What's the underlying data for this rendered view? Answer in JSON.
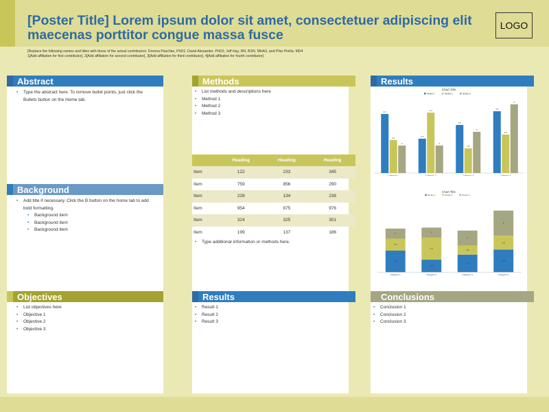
{
  "poster": {
    "title": "[Poster Title] Lorem ipsum dolor sit amet, consectetuer adipiscing elit maecenas porttitor congue massa fusce",
    "logo": "LOGO",
    "authors_line1": "[Replace the following names and titles with those of the actual contributors: Dorena Paschke, PhD1; David Alexander, PhD2;  Jeff Hay, RN, BSN, MHA3, and Pilar Pinilla, MD4",
    "authors_line2": "1[Add affiliation for first contributor], 2[Add affiliation for second contributor], 3[Add affiliation for third contributor], 4[Add affiliation for fourth contributor]"
  },
  "colors": {
    "blue": "#2f7dbe",
    "olive": "#c9c659",
    "sage": "#a5a682",
    "dark_blue": "#2f6aa3",
    "light_blue": "#6a99c5",
    "dark_olive": "#a4a32f"
  },
  "abstract": {
    "heading": "Abstract",
    "items": [
      "Type the abstract here. To remove bullet points, just click the Bullets button on the Home tab."
    ]
  },
  "background": {
    "heading": "Background",
    "items": [
      "Add title if necessary. Click the B button on the home tab to add bold formatting."
    ],
    "subitems": [
      "Background item",
      "Background item",
      "Background item"
    ]
  },
  "objectives": {
    "heading": "Objectives",
    "items": [
      "List objectives here",
      "Objective 1",
      "Objective 2",
      "Objective 3"
    ]
  },
  "methods": {
    "heading": "Methods",
    "items": [
      "List methods and descriptions here",
      "Method 1",
      "Method 2",
      "Method 3"
    ],
    "after_table": "Type additional information or methods here."
  },
  "table": {
    "headers": [
      "",
      "Heading",
      "Heading",
      "Heading"
    ],
    "rows": [
      [
        "Item",
        "122",
        "233",
        "345"
      ],
      [
        "Item",
        "759",
        "856",
        "290"
      ],
      [
        "Item",
        "228",
        "134",
        "238"
      ],
      [
        "Item",
        "954",
        "875",
        "976"
      ],
      [
        "Item",
        "324",
        "325",
        "301"
      ],
      [
        "Item",
        "199",
        "137",
        "186"
      ]
    ]
  },
  "results_mid": {
    "heading": "Results",
    "items": [
      "Result 1",
      "Result 2",
      "Result 3"
    ]
  },
  "results_right": {
    "heading": "Results"
  },
  "conclusions": {
    "heading": "Conclusions",
    "items": [
      "Conclusion 1",
      "Conclusion 2",
      "Conclusion 3"
    ]
  },
  "chart_data": [
    {
      "type": "bar",
      "title": "Chart Title",
      "categories": [
        "Category 1",
        "Category 2",
        "Category 3",
        "Category 4"
      ],
      "series": [
        {
          "name": "Series 1",
          "values": [
            4.3,
            2.5,
            3.5,
            4.5
          ],
          "color": "#2f7dbe"
        },
        {
          "name": "Series 2",
          "values": [
            2.4,
            4.4,
            1.8,
            2.8
          ],
          "color": "#c9c659"
        },
        {
          "name": "Series 3",
          "values": [
            2,
            2,
            3,
            5
          ],
          "color": "#a5a682"
        }
      ],
      "ylim": [
        0,
        5
      ],
      "legend": "top"
    },
    {
      "type": "bar",
      "stacked": true,
      "title": "Chart Title",
      "categories": [
        "Category 1",
        "Category 2",
        "Category 3",
        "Category 4"
      ],
      "series": [
        {
          "name": "Series 1",
          "values": [
            4.3,
            2.5,
            3.5,
            4.5
          ],
          "color": "#2f7dbe"
        },
        {
          "name": "Series 2",
          "values": [
            2.4,
            4.4,
            1.8,
            2.8
          ],
          "color": "#c9c659"
        },
        {
          "name": "Series 3",
          "values": [
            2,
            2,
            3,
            5
          ],
          "color": "#a5a682"
        }
      ],
      "ylim": [
        0,
        14
      ],
      "legend": "top"
    }
  ]
}
